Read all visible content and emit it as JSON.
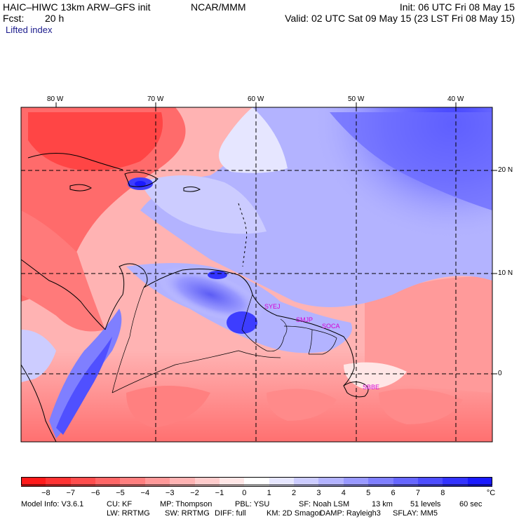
{
  "header": {
    "title": "HAIC–HIWC 13km ARW–GFS init",
    "org": "NCAR/MMM",
    "init": "Init: 06 UTC Fri 08 May 15",
    "fcst_label": "Fcst:",
    "fcst_value": "20 h",
    "valid": "Valid: 02 UTC Sat 09 May 15 (23 LST Fri 08 May 15)",
    "field": "Lifted index"
  },
  "map": {
    "lon_labels": [
      "80 W",
      "70 W",
      "60 W",
      "50 W",
      "40 W"
    ],
    "lat_labels": [
      "20 N",
      "10 N",
      "0"
    ],
    "station_labels": [
      "SYEJ",
      "SMJP",
      "SOCA",
      "SBBE"
    ],
    "station_color": "#d400d4"
  },
  "colorbar": {
    "ticks": [
      "−8",
      "−7",
      "−6",
      "−5",
      "−4",
      "−3",
      "−2",
      "−1",
      "0",
      "1",
      "2",
      "3",
      "4",
      "5",
      "6",
      "7",
      "8"
    ],
    "unit": "°C",
    "colors": [
      "#ff1a1a",
      "#ff3333",
      "#ff4d4d",
      "#ff6666",
      "#ff7f7f",
      "#ff9999",
      "#ffb3b3",
      "#ffcccc",
      "#ffe6e6",
      "#ffffff",
      "#e6e6ff",
      "#ccccff",
      "#b3b3ff",
      "#9999ff",
      "#7f7fff",
      "#6666ff",
      "#4d4dff",
      "#3333ff",
      "#1a1aff"
    ]
  },
  "footer": {
    "line1": [
      "Model Info: V3.6.1",
      "CU: KF",
      "MP: Thompson",
      "PBL: YSU",
      "SF: Noah LSM",
      "13 km",
      "51 levels",
      "60 sec"
    ],
    "line2": [
      "LW: RRTMG",
      "SW: RRTMG",
      "DIFF: full",
      "KM: 2D Smagor",
      "DAMP: Rayleigh3",
      "SFLAY: MM5"
    ]
  }
}
